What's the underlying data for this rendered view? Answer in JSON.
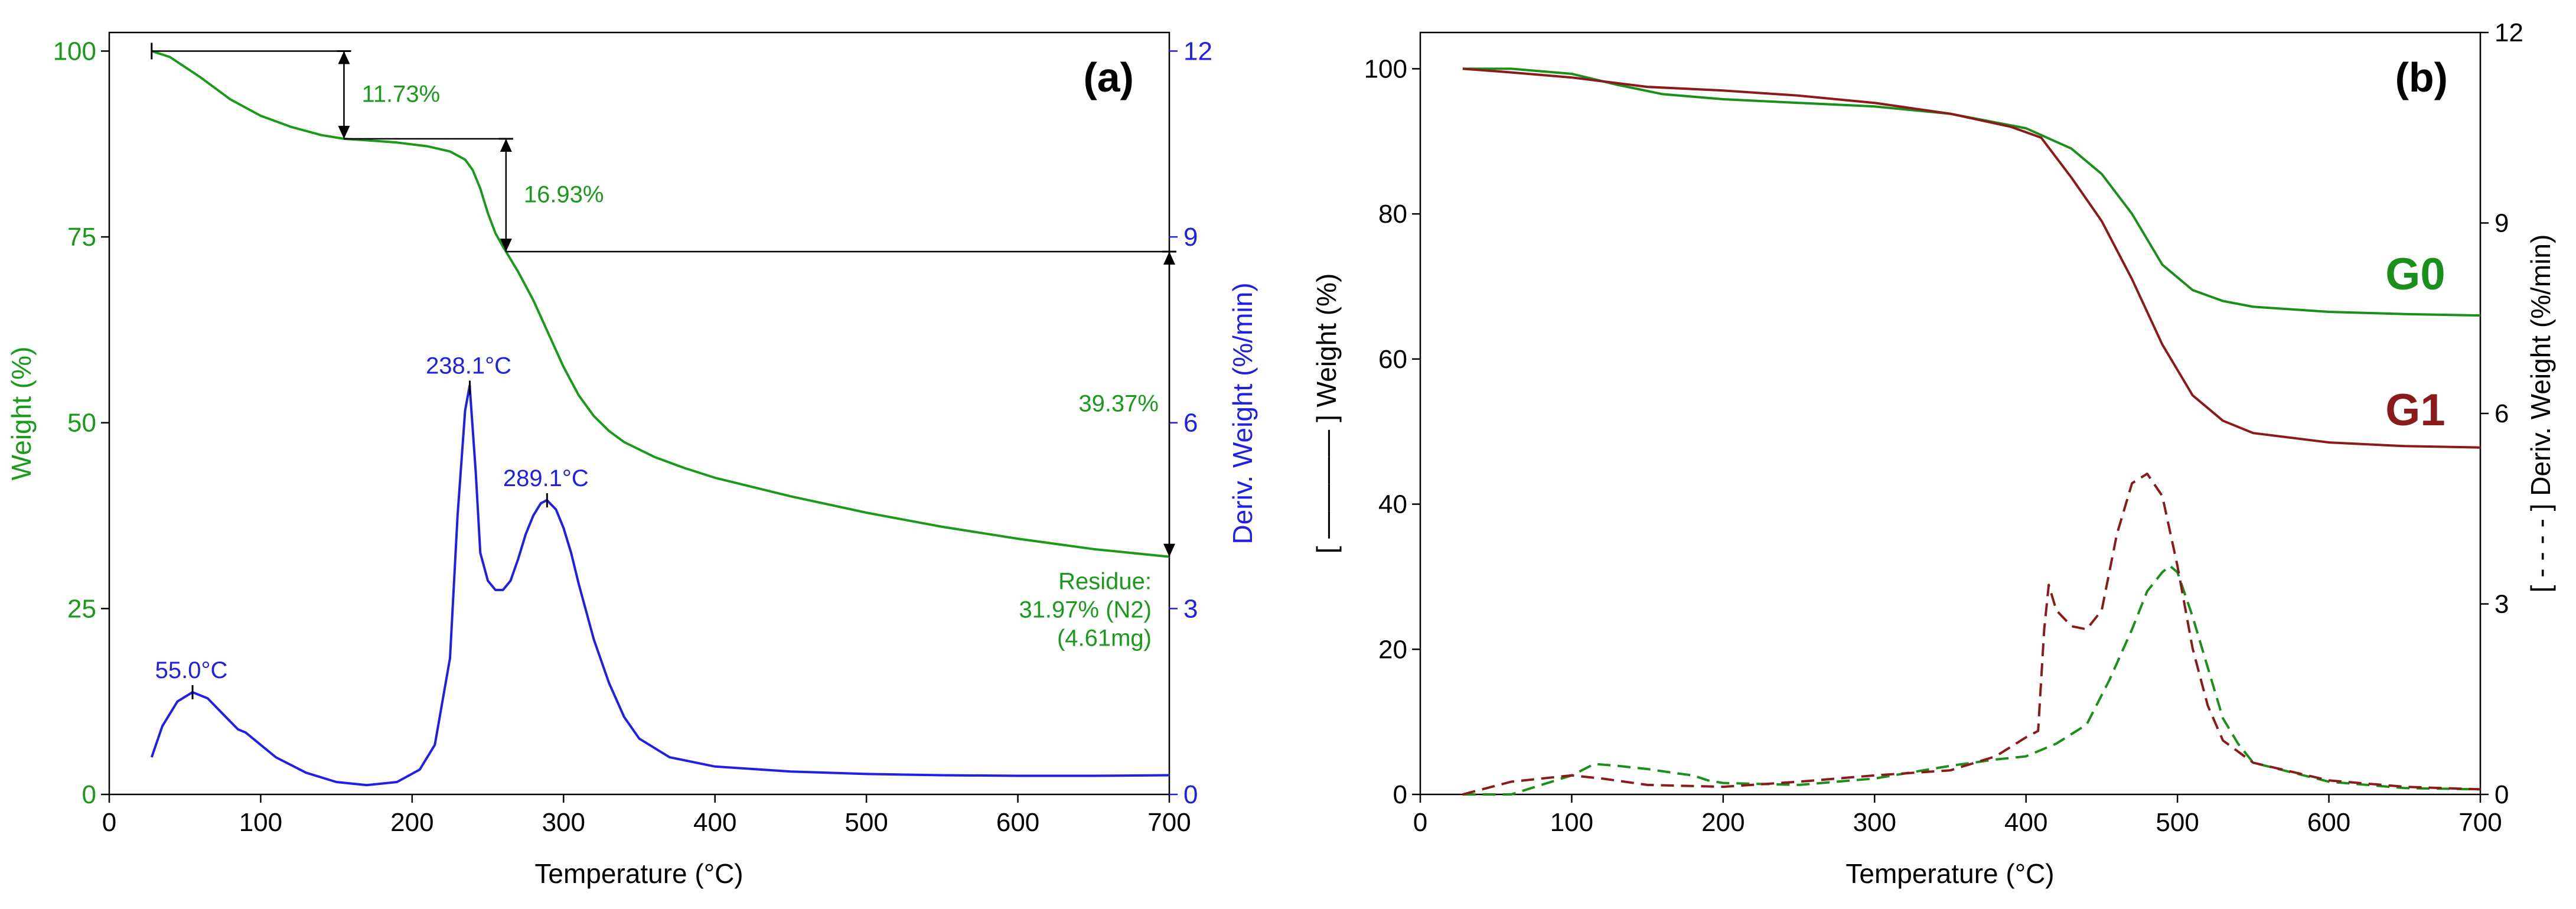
{
  "colors": {
    "weight_a": "#1a9a1a",
    "deriv_a": "#1f1fe6",
    "g0": "#1a8f1a",
    "g1": "#8b1a1a",
    "axis": "#000000"
  },
  "chart_data": [
    {
      "type": "line",
      "panel": "(a)",
      "xlabel": "Temperature (°C)",
      "ylabel_left": "Weight (%)",
      "ylabel_right": "Deriv. Weight (%/min)",
      "xlim": [
        0,
        700
      ],
      "ylim_left": [
        0,
        102.5
      ],
      "ylim_right": [
        0,
        12.3
      ],
      "xticks": [
        "0",
        "100",
        "200",
        "300",
        "400",
        "500",
        "600",
        "700"
      ],
      "yticks_left": [
        "0",
        "25",
        "50",
        "75",
        "100"
      ],
      "yticks_right": [
        "0",
        "3",
        "6",
        "9",
        "12"
      ],
      "series": [
        {
          "name": "Weight",
          "axis": "left",
          "style": "solid",
          "x": [
            28,
            40,
            60,
            80,
            100,
            120,
            140,
            155,
            170,
            190,
            210,
            225,
            235,
            240,
            245,
            250,
            255,
            260,
            270,
            280,
            290,
            300,
            310,
            320,
            330,
            340,
            360,
            380,
            400,
            450,
            500,
            550,
            600,
            650,
            700
          ],
          "values": [
            100,
            99.2,
            96.5,
            93.5,
            91.3,
            89.8,
            88.7,
            88.2,
            88.0,
            87.7,
            87.2,
            86.5,
            85.4,
            84.0,
            81.5,
            78.2,
            75.5,
            73.7,
            70.3,
            66.5,
            62.0,
            57.5,
            53.7,
            50.9,
            48.9,
            47.4,
            45.4,
            43.9,
            42.6,
            40.1,
            37.9,
            36.0,
            34.4,
            33.0,
            31.97
          ]
        },
        {
          "name": "Deriv. Weight",
          "axis": "right",
          "style": "solid",
          "x": [
            28,
            35,
            45,
            55,
            65,
            75,
            85,
            90,
            95,
            100,
            110,
            130,
            150,
            170,
            190,
            205,
            215,
            225,
            230,
            235,
            238,
            242,
            245,
            250,
            255,
            260,
            265,
            270,
            275,
            280,
            285,
            289,
            295,
            300,
            305,
            310,
            320,
            330,
            340,
            350,
            370,
            400,
            450,
            500,
            550,
            600,
            650,
            700
          ],
          "values": [
            0.6,
            1.1,
            1.5,
            1.65,
            1.55,
            1.3,
            1.05,
            1.0,
            0.9,
            0.8,
            0.6,
            0.35,
            0.2,
            0.15,
            0.2,
            0.4,
            0.8,
            2.2,
            4.5,
            6.2,
            6.6,
            5.2,
            3.9,
            3.45,
            3.3,
            3.3,
            3.45,
            3.8,
            4.2,
            4.5,
            4.7,
            4.75,
            4.6,
            4.3,
            3.9,
            3.4,
            2.5,
            1.8,
            1.25,
            0.9,
            0.6,
            0.45,
            0.37,
            0.33,
            0.31,
            0.3,
            0.3,
            0.31
          ]
        }
      ],
      "annotations": [
        {
          "text": "11.73%",
          "step_from_c": 28,
          "step_to_c": 155
        },
        {
          "text": "16.93%",
          "step_from_c": 155,
          "step_to_c": 262
        },
        {
          "text": "39.37%",
          "step_from_c": 262,
          "step_to_c": 700
        },
        {
          "text": "238.1°C",
          "peak_c": 238.1,
          "series": "Deriv. Weight"
        },
        {
          "text": "289.1°C",
          "peak_c": 289.1,
          "series": "Deriv. Weight"
        },
        {
          "text": "55.0°C",
          "peak_c": 55.0,
          "series": "Deriv. Weight"
        }
      ],
      "residue_lines": [
        "Residue:",
        "31.97% (N2)",
        "(4.61mg)"
      ]
    },
    {
      "type": "line",
      "panel": "(b)",
      "xlabel": "Temperature (°C)",
      "ylabel_left": "[ ———— ] Weight (%)",
      "ylabel_right": "[ - - - - ] Deriv. Weight (%/min)",
      "xlim": [
        0,
        700
      ],
      "ylim_left": [
        0,
        105
      ],
      "ylim_right": [
        0,
        12
      ],
      "xticks": [
        "0",
        "100",
        "200",
        "300",
        "400",
        "500",
        "600",
        "700"
      ],
      "yticks_left": [
        "0",
        "20",
        "40",
        "60",
        "80",
        "100"
      ],
      "yticks_right": [
        "0",
        "3",
        "6",
        "9",
        "12"
      ],
      "series": [
        {
          "name": "G0",
          "axis": "left",
          "style": "solid",
          "x": [
            28,
            60,
            100,
            130,
            160,
            200,
            250,
            300,
            350,
            400,
            430,
            450,
            470,
            490,
            510,
            530,
            550,
            600,
            650,
            700
          ],
          "values": [
            100,
            100,
            99.3,
            97.8,
            96.5,
            95.8,
            95.3,
            94.8,
            93.8,
            91.8,
            89.0,
            85.5,
            80.0,
            73.0,
            69.5,
            68.0,
            67.2,
            66.5,
            66.2,
            66.0
          ]
        },
        {
          "name": "G1",
          "axis": "left",
          "style": "solid",
          "x": [
            28,
            60,
            100,
            150,
            200,
            250,
            300,
            350,
            390,
            410,
            430,
            450,
            470,
            490,
            510,
            530,
            550,
            600,
            650,
            700
          ],
          "values": [
            100,
            99.5,
            98.8,
            97.5,
            97.0,
            96.3,
            95.3,
            93.8,
            92.0,
            90.5,
            85.0,
            79.0,
            71.0,
            62.0,
            55.0,
            51.5,
            49.8,
            48.5,
            48.0,
            47.8
          ]
        },
        {
          "name": "G0 deriv",
          "axis": "right",
          "style": "dashed",
          "x": [
            28,
            60,
            80,
            100,
            115,
            130,
            150,
            170,
            180,
            190,
            200,
            250,
            300,
            350,
            380,
            400,
            420,
            440,
            455,
            470,
            480,
            490,
            495,
            500,
            510,
            520,
            530,
            540,
            550,
            600,
            650,
            700
          ],
          "values": [
            0.0,
            0.0,
            0.15,
            0.3,
            0.48,
            0.45,
            0.4,
            0.33,
            0.3,
            0.22,
            0.18,
            0.15,
            0.25,
            0.45,
            0.55,
            0.6,
            0.8,
            1.1,
            1.8,
            2.6,
            3.2,
            3.5,
            3.6,
            3.5,
            2.8,
            2.0,
            1.2,
            0.8,
            0.5,
            0.2,
            0.1,
            0.08
          ]
        },
        {
          "name": "G1 deriv",
          "axis": "right",
          "style": "dashed",
          "x": [
            28,
            60,
            100,
            120,
            150,
            200,
            250,
            300,
            350,
            380,
            400,
            408,
            412,
            415,
            420,
            430,
            440,
            450,
            460,
            470,
            480,
            490,
            500,
            510,
            520,
            530,
            550,
            600,
            650,
            700
          ],
          "values": [
            0.0,
            0.2,
            0.3,
            0.25,
            0.15,
            0.12,
            0.2,
            0.3,
            0.38,
            0.6,
            0.9,
            1.0,
            2.6,
            3.3,
            2.9,
            2.65,
            2.6,
            2.9,
            4.1,
            4.9,
            5.05,
            4.7,
            3.6,
            2.3,
            1.4,
            0.85,
            0.5,
            0.22,
            0.12,
            0.08
          ]
        }
      ],
      "labels": {
        "g0": "G0",
        "g1": "G1"
      }
    }
  ]
}
